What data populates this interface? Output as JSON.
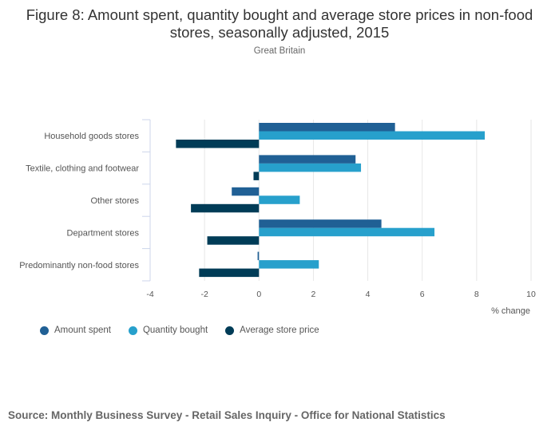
{
  "title": "Figure 8: Amount spent, quantity bought and average store prices in non-food stores, seasonally adjusted, 2015",
  "subtitle": "Great Britain",
  "source": "Source: Monthly Business Survey - Retail Sales Inquiry - Office for National Statistics",
  "colors": {
    "amount_spent": "#206095",
    "quantity_bought": "#27a0cc",
    "average_store_price": "#003c57"
  },
  "chart_data": {
    "type": "bar",
    "orientation": "horizontal",
    "categories": [
      "Household goods stores",
      "Textile, clothing and footwear",
      "Other stores",
      "Department stores",
      "Predominantly non-food stores"
    ],
    "series": [
      {
        "name": "Amount spent",
        "values": [
          5.0,
          3.55,
          -1.0,
          4.5,
          -0.05
        ]
      },
      {
        "name": "Quantity bought",
        "values": [
          8.3,
          3.75,
          1.5,
          6.45,
          2.2
        ]
      },
      {
        "name": "Average store price",
        "values": [
          -3.05,
          -0.2,
          -2.5,
          -1.9,
          -2.2
        ]
      }
    ],
    "xlim": [
      -4,
      10
    ],
    "xticks": [
      "-4",
      "-2",
      "0",
      "2",
      "4",
      "6",
      "8",
      "10"
    ],
    "xlabel": "% change",
    "ylabel": "",
    "legend_position": "bottom-left",
    "grid": true
  }
}
